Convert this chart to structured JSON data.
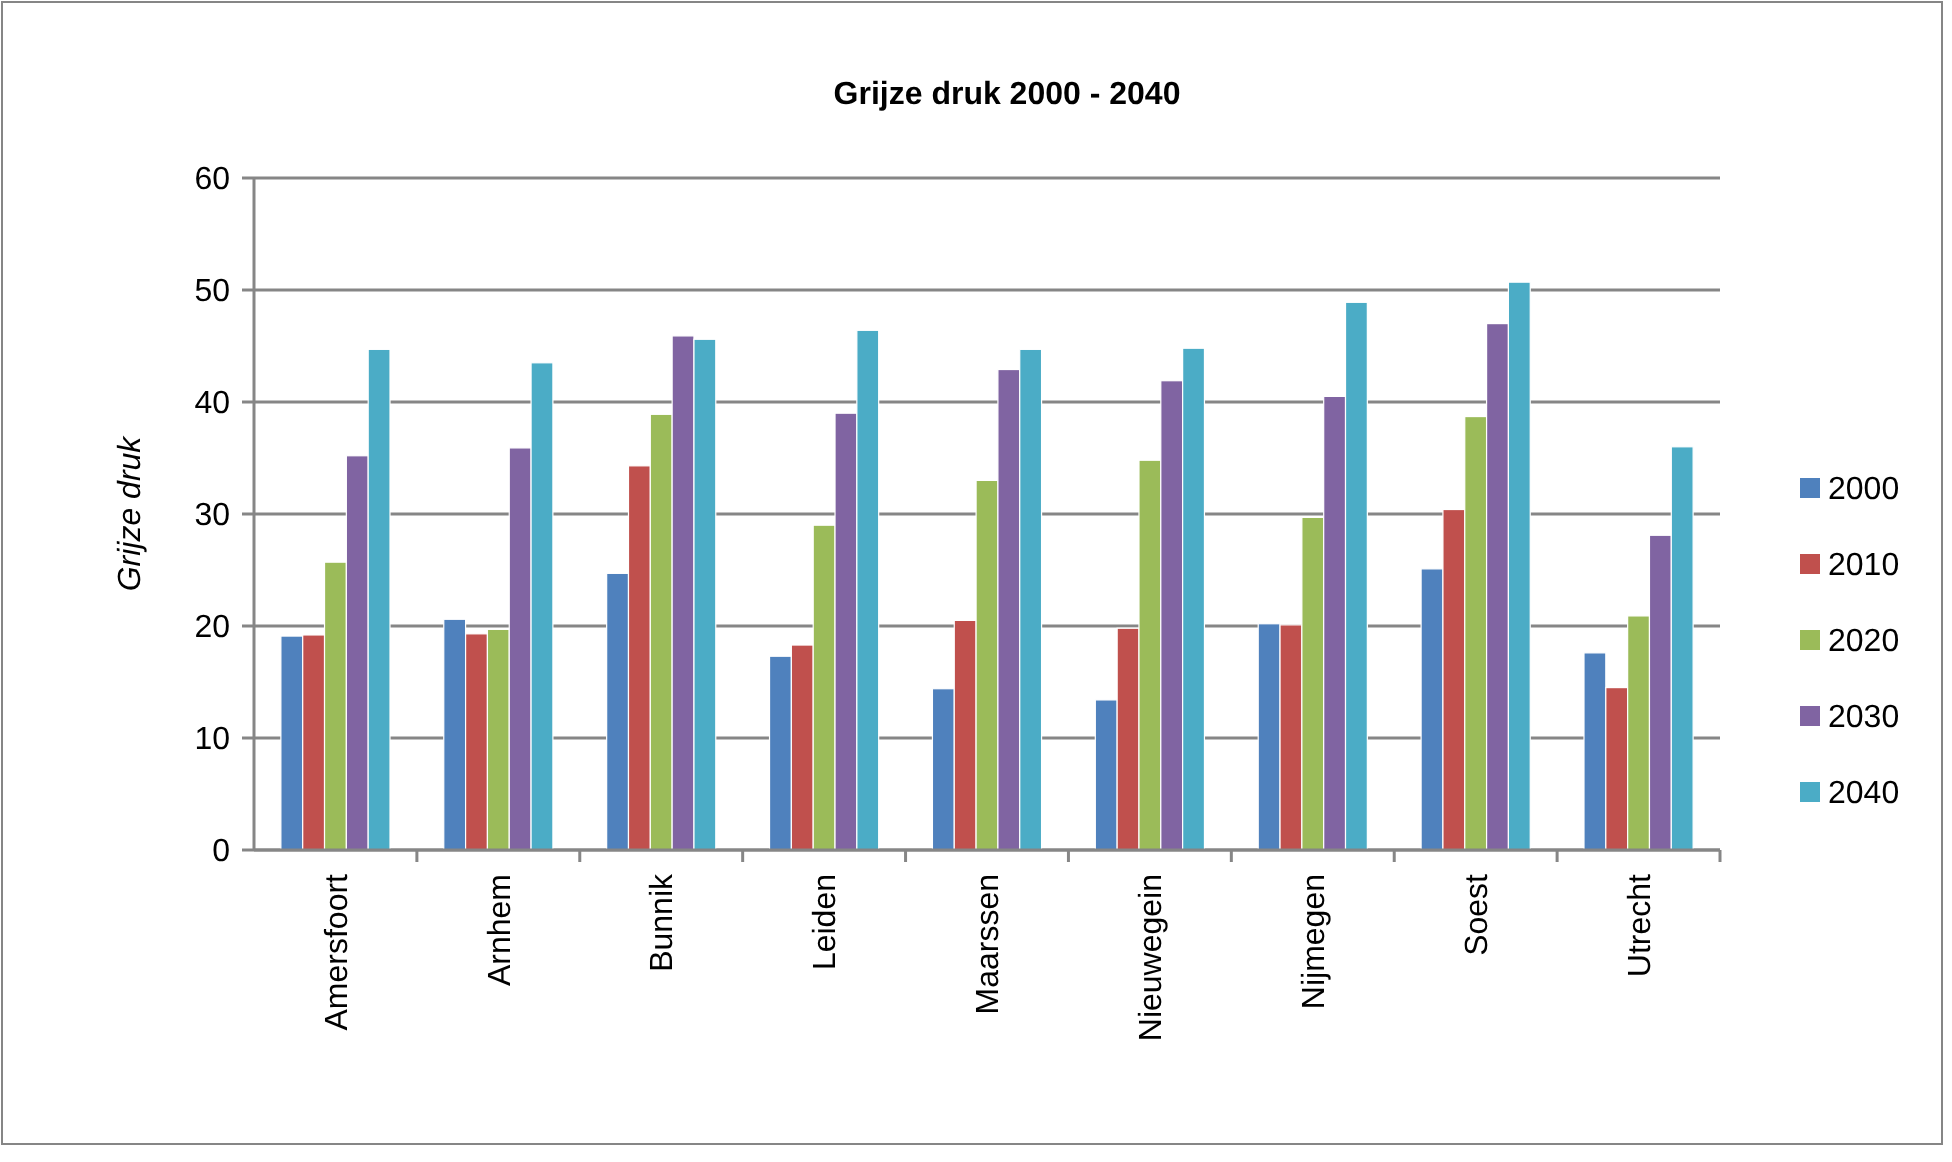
{
  "chart_data": {
    "type": "bar",
    "title": "Grijze druk 2000 - 2040",
    "ylabel": "Grijze druk",
    "categories": [
      "Amersfoort",
      "Arnhem",
      "Bunnik",
      "Leiden",
      "Maarssen",
      "Nieuwegein",
      "Nijmegen",
      "Soest",
      "Utrecht"
    ],
    "series": [
      {
        "name": "2000",
        "color": "#4f81bd",
        "values": [
          19.1,
          20.6,
          24.7,
          17.3,
          14.4,
          13.4,
          20.2,
          25.1,
          17.6
        ]
      },
      {
        "name": "2010",
        "color": "#c0504d",
        "values": [
          19.2,
          19.3,
          34.3,
          18.3,
          20.5,
          19.8,
          20.1,
          30.4,
          14.5
        ]
      },
      {
        "name": "2020",
        "color": "#9bbb59",
        "values": [
          25.7,
          19.7,
          38.9,
          29.0,
          33.0,
          34.8,
          29.7,
          38.7,
          20.9
        ]
      },
      {
        "name": "2030",
        "color": "#8064a2",
        "values": [
          35.2,
          35.9,
          45.9,
          39.0,
          42.9,
          41.9,
          40.5,
          47.0,
          28.1
        ]
      },
      {
        "name": "2040",
        "color": "#4bacc6",
        "values": [
          44.7,
          43.5,
          45.6,
          46.4,
          44.7,
          44.8,
          48.9,
          50.7,
          36.0
        ]
      }
    ],
    "ylim": [
      0,
      60
    ],
    "yticks": [
      0,
      10,
      20,
      30,
      40,
      50,
      60
    ],
    "grid": "y",
    "legend": "right"
  }
}
